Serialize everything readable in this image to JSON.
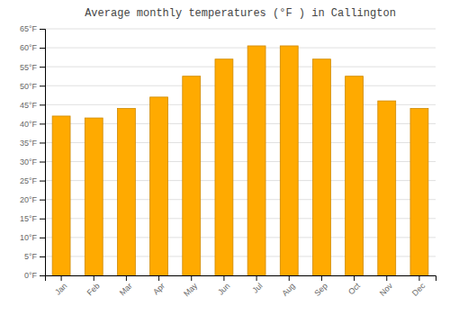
{
  "chart_data": {
    "type": "bar",
    "title": "Average monthly temperatures (°F ) in Callington",
    "categories": [
      "Jan",
      "Feb",
      "Mar",
      "Apr",
      "May",
      "Jun",
      "Jul",
      "Aug",
      "Sep",
      "Oct",
      "Nov",
      "Dec"
    ],
    "values": [
      42,
      41.5,
      44,
      47,
      52.5,
      57,
      60.5,
      60.5,
      57,
      52.5,
      46,
      44
    ],
    "color": "#FFAA00",
    "ylim": [
      0,
      65
    ],
    "yticks": [
      {
        "value": 0,
        "label": "0°F"
      },
      {
        "value": 5,
        "label": "5°F"
      },
      {
        "value": 10,
        "label": "10°F"
      },
      {
        "value": 15,
        "label": "15°F"
      },
      {
        "value": 20,
        "label": "20°F"
      },
      {
        "value": 25,
        "label": "25°F"
      },
      {
        "value": 30,
        "label": "30°F"
      },
      {
        "value": 35,
        "label": "35°F"
      },
      {
        "value": 40,
        "label": "40°F"
      },
      {
        "value": 45,
        "label": "45°F"
      },
      {
        "value": 50,
        "label": "50°F"
      },
      {
        "value": 55,
        "label": "55°F"
      },
      {
        "value": 60,
        "label": "60°F"
      },
      {
        "value": 65,
        "label": "65°F"
      }
    ],
    "grid": true
  }
}
